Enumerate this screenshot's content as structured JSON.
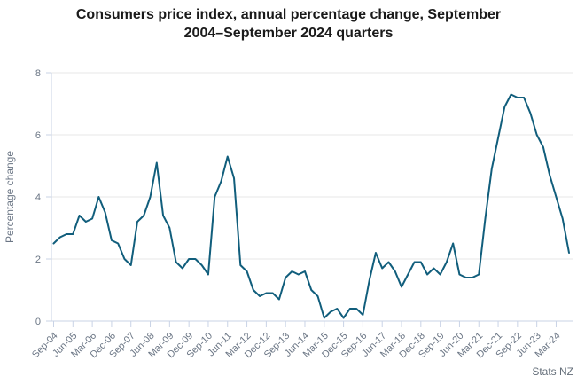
{
  "title": {
    "lines": [
      "Consumers price index, annual percentage change, September",
      "2004–September 2024 quarters"
    ]
  },
  "source": "Stats NZ",
  "chart_data": {
    "type": "line",
    "title": "Consumers price index, annual percentage change, September 2004–September 2024 quarters",
    "xlabel": "",
    "ylabel": "Percentage change",
    "ylim": [
      0,
      8
    ],
    "yticks": [
      0,
      2,
      4,
      6,
      8
    ],
    "xtick_step": 3,
    "grid": "horizontal",
    "legend": "none",
    "line_color": "#115e7c",
    "x": [
      "Sep-04",
      "Dec-04",
      "Mar-05",
      "Jun-05",
      "Sep-05",
      "Dec-05",
      "Mar-06",
      "Jun-06",
      "Sep-06",
      "Dec-06",
      "Mar-07",
      "Jun-07",
      "Sep-07",
      "Dec-07",
      "Mar-08",
      "Jun-08",
      "Sep-08",
      "Dec-08",
      "Mar-09",
      "Jun-09",
      "Sep-09",
      "Dec-09",
      "Mar-10",
      "Jun-10",
      "Sep-10",
      "Dec-10",
      "Mar-11",
      "Jun-11",
      "Sep-11",
      "Dec-11",
      "Mar-12",
      "Jun-12",
      "Sep-12",
      "Dec-12",
      "Mar-13",
      "Jun-13",
      "Sep-13",
      "Dec-13",
      "Mar-14",
      "Jun-14",
      "Sep-14",
      "Dec-14",
      "Mar-15",
      "Jun-15",
      "Sep-15",
      "Dec-15",
      "Mar-16",
      "Jun-16",
      "Sep-16",
      "Dec-16",
      "Mar-17",
      "Jun-17",
      "Sep-17",
      "Dec-17",
      "Mar-18",
      "Jun-18",
      "Sep-18",
      "Dec-18",
      "Mar-19",
      "Jun-19",
      "Sep-19",
      "Dec-19",
      "Mar-20",
      "Jun-20",
      "Sep-20",
      "Dec-20",
      "Mar-21",
      "Jun-21",
      "Sep-21",
      "Dec-21",
      "Mar-22",
      "Jun-22",
      "Sep-22",
      "Dec-22",
      "Mar-23",
      "Jun-23",
      "Sep-23",
      "Dec-23",
      "Mar-24",
      "Jun-24",
      "Sep-24"
    ],
    "values": [
      2.5,
      2.7,
      2.8,
      2.8,
      3.4,
      3.2,
      3.3,
      4.0,
      3.5,
      2.6,
      2.5,
      2.0,
      1.8,
      3.2,
      3.4,
      4.0,
      5.1,
      3.4,
      3.0,
      1.9,
      1.7,
      2.0,
      2.0,
      1.8,
      1.5,
      4.0,
      4.5,
      5.3,
      4.6,
      1.8,
      1.6,
      1.0,
      0.8,
      0.9,
      0.9,
      0.7,
      1.4,
      1.6,
      1.5,
      1.6,
      1.0,
      0.8,
      0.1,
      0.3,
      0.4,
      0.1,
      0.4,
      0.4,
      0.2,
      1.3,
      2.2,
      1.7,
      1.9,
      1.6,
      1.1,
      1.5,
      1.9,
      1.9,
      1.5,
      1.7,
      1.5,
      1.9,
      2.5,
      1.5,
      1.4,
      1.4,
      1.5,
      3.3,
      4.9,
      5.9,
      6.9,
      7.3,
      7.2,
      7.2,
      6.7,
      6.0,
      5.6,
      4.7,
      4.0,
      3.3,
      2.2
    ],
    "source": "Stats NZ"
  }
}
